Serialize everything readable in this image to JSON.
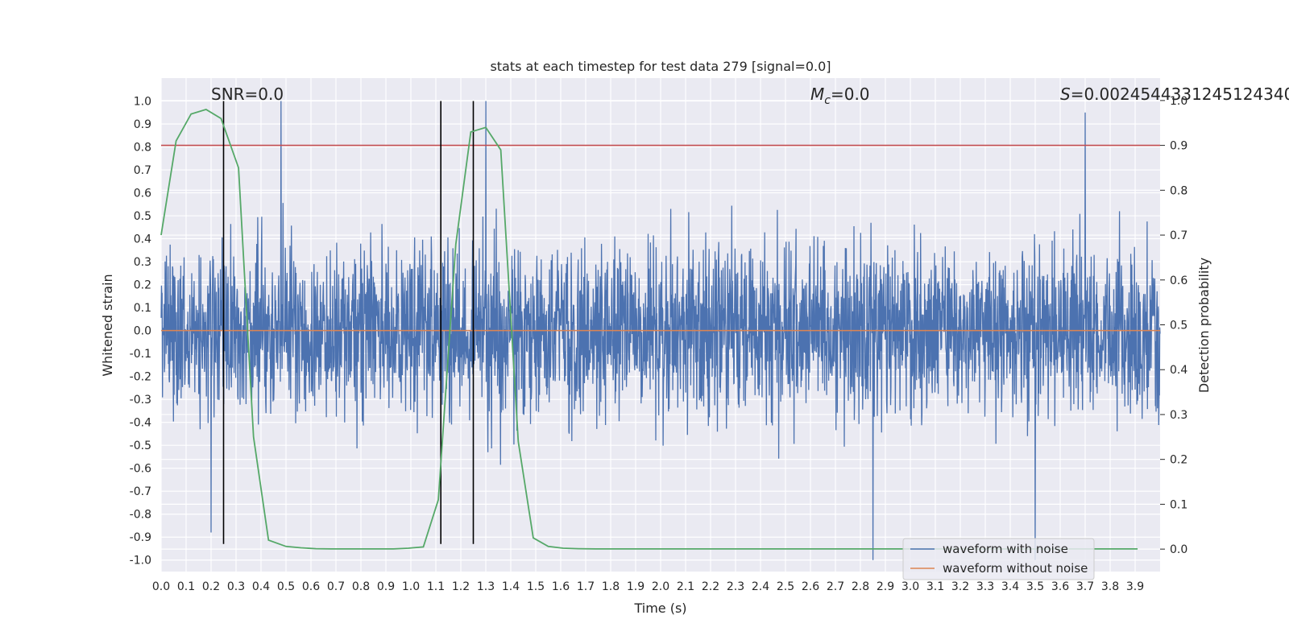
{
  "chart_data": {
    "type": "line",
    "title": "stats at each timestep for test data 279 [signal=0.0]",
    "xlabel": "Time (s)",
    "ylabel": "Whitened strain",
    "ylabel_right": "Detection probability",
    "xlim": [
      0.0,
      4.0
    ],
    "ylim": [
      -1.05,
      1.1
    ],
    "ylim_right": [
      -0.05,
      1.05
    ],
    "grid": true,
    "legend_position": "lower-right",
    "annotations": {
      "snr": "SNR=0.0",
      "mc_symbol": "M",
      "mc_sub": "c",
      "mc_value": "=0.0",
      "s_symbol": "S",
      "s_value": "=0.0024544331245124340"
    },
    "x_ticks": [
      "0.0",
      "0.1",
      "0.2",
      "0.3",
      "0.4",
      "0.5",
      "0.6",
      "0.7",
      "0.8",
      "0.9",
      "1.0",
      "1.1",
      "1.2",
      "1.3",
      "1.4",
      "1.5",
      "1.6",
      "1.7",
      "1.8",
      "1.9",
      "2.0",
      "2.1",
      "2.2",
      "2.3",
      "2.4",
      "2.5",
      "2.6",
      "2.7",
      "2.8",
      "2.9",
      "3.0",
      "3.1",
      "3.2",
      "3.3",
      "3.4",
      "3.5",
      "3.6",
      "3.7",
      "3.8",
      "3.9"
    ],
    "y_ticks": [
      "1.0",
      "0.9",
      "0.8",
      "0.7",
      "0.6",
      "0.5",
      "0.4",
      "0.3",
      "0.2",
      "0.1",
      "0.0",
      "-0.1",
      "-0.2",
      "-0.3",
      "-0.4",
      "-0.5",
      "-0.6",
      "-0.7",
      "-0.8",
      "-0.9",
      "-1.0"
    ],
    "y_ticks_right": [
      "1.0",
      "0.9",
      "0.8",
      "0.7",
      "0.6",
      "0.5",
      "0.4",
      "0.3",
      "0.2",
      "0.1",
      "0.0"
    ],
    "series": [
      {
        "name": "waveform with noise",
        "color": "#4c72b0",
        "axis": "left",
        "style": "dense-noise",
        "typical_amplitude": 0.35,
        "peaks": [
          {
            "x": 0.48,
            "y": 1.0
          },
          {
            "x": 1.3,
            "y": 1.0
          },
          {
            "x": 3.7,
            "y": 0.95
          },
          {
            "x": 2.85,
            "y": -1.0
          },
          {
            "x": 3.5,
            "y": -1.0
          },
          {
            "x": 0.2,
            "y": -0.88
          }
        ]
      },
      {
        "name": "waveform without noise",
        "color": "#dd8452",
        "axis": "left",
        "x": [
          0.0,
          4.0
        ],
        "y": [
          0.0,
          0.0
        ]
      },
      {
        "name": "",
        "color": "#55a868",
        "axis": "right",
        "x": [
          0.0,
          0.06,
          0.12,
          0.18,
          0.24,
          0.31,
          0.37,
          0.43,
          0.5,
          0.56,
          0.62,
          0.68,
          0.74,
          0.8,
          0.87,
          0.93,
          0.99,
          1.05,
          1.11,
          1.18,
          1.24,
          1.3,
          1.36,
          1.43,
          1.49,
          1.55,
          1.61,
          1.67,
          1.74,
          1.8,
          1.86,
          1.92,
          1.98,
          2.05,
          2.11,
          2.17,
          2.23,
          2.3,
          2.36,
          2.42,
          2.48,
          2.54,
          2.61,
          2.67,
          2.73,
          2.79,
          2.85,
          2.92,
          2.98,
          3.04,
          3.1,
          3.16,
          3.23,
          3.29,
          3.35,
          3.41,
          3.47,
          3.54,
          3.6,
          3.66,
          3.72,
          3.78,
          3.85,
          3.91
        ],
        "y": [
          0.7,
          0.91,
          0.97,
          0.98,
          0.96,
          0.85,
          0.25,
          0.02,
          0.006,
          0.003,
          0.001,
          0.0005,
          0.0005,
          0.0005,
          0.0005,
          0.0005,
          0.002,
          0.005,
          0.11,
          0.68,
          0.93,
          0.94,
          0.89,
          0.24,
          0.025,
          0.006,
          0.002,
          0.001,
          0.0005,
          0.0005,
          0.0005,
          0.0005,
          0.0005,
          0.0005,
          0.0005,
          0.0005,
          0.0005,
          0.0005,
          0.0005,
          0.0005,
          0.0005,
          0.0005,
          0.0005,
          0.0005,
          0.0005,
          0.0005,
          0.0005,
          0.0005,
          0.0005,
          0.0005,
          0.0005,
          0.0005,
          0.0005,
          0.0005,
          0.0005,
          0.0005,
          0.0005,
          0.0005,
          0.0005,
          0.0005,
          0.0005,
          0.0005,
          0.0005,
          0.0005
        ]
      },
      {
        "name": "",
        "color": "#c44e52",
        "axis": "right",
        "x": [
          0.0,
          4.0
        ],
        "y": [
          0.9,
          0.9
        ]
      }
    ],
    "vlines": [
      {
        "x": 0.25,
        "ymin": -0.93,
        "ymax": 1.0
      },
      {
        "x": 1.12,
        "ymin": -0.93,
        "ymax": 1.0
      },
      {
        "x": 1.25,
        "ymin": -0.93,
        "ymax": 1.0
      }
    ]
  }
}
